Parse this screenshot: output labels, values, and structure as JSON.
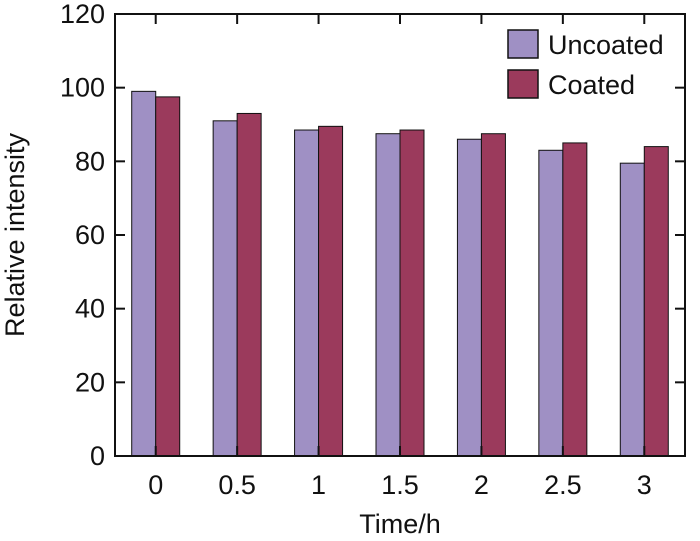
{
  "chart_data": {
    "type": "bar",
    "title": "",
    "xlabel": "Time/h",
    "ylabel": "Relative intensity",
    "categories": [
      "0",
      "0.5",
      "1",
      "1.5",
      "2",
      "2.5",
      "3"
    ],
    "series": [
      {
        "name": "Uncoated",
        "color": "#9f90c4",
        "values": [
          99,
          91,
          88.5,
          87.5,
          86,
          83,
          79.5
        ]
      },
      {
        "name": "Coated",
        "color": "#9b3a5c",
        "values": [
          97.5,
          93,
          89.5,
          88.5,
          87.5,
          85,
          84
        ]
      }
    ],
    "ylim": [
      0,
      120
    ],
    "yticks": [
      "0",
      "20",
      "40",
      "60",
      "80",
      "100",
      "120"
    ],
    "grid": false,
    "legend_position": "top-right"
  }
}
